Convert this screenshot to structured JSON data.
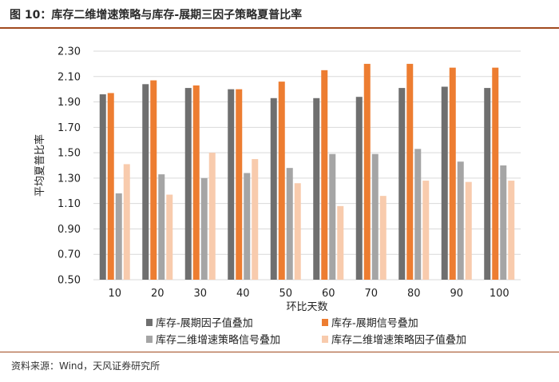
{
  "figure": {
    "title": "图 10：库存二维增速策略与库存-展期三因子策略夏普比率",
    "source": "资料来源：Wind，天风证券研究所"
  },
  "colors": {
    "header_rule": "#a14a1e",
    "grid": "#d9d9d9"
  },
  "chart_data": {
    "type": "bar",
    "xlabel": "环比天数",
    "ylabel": "平均夏普比率",
    "ylim": [
      0.5,
      2.3
    ],
    "yticks": [
      "0.50",
      "0.70",
      "0.90",
      "1.10",
      "1.30",
      "1.50",
      "1.70",
      "1.90",
      "2.10",
      "2.30"
    ],
    "grid": "horizontal",
    "legend_position": "bottom",
    "categories": [
      "10",
      "20",
      "30",
      "40",
      "50",
      "60",
      "70",
      "80",
      "90",
      "100"
    ],
    "series": [
      {
        "name": "库存-展期因子值叠加",
        "color": "#6f6f6f",
        "values": [
          1.96,
          2.04,
          2.01,
          2.0,
          1.93,
          1.93,
          1.94,
          2.01,
          2.02,
          2.01
        ]
      },
      {
        "name": "库存-展期信号叠加",
        "color": "#ed7d31",
        "values": [
          1.97,
          2.07,
          2.03,
          2.0,
          2.06,
          2.15,
          2.2,
          2.2,
          2.17,
          2.17
        ]
      },
      {
        "name": "库存二维增速策略信号叠加",
        "color": "#a5a5a5",
        "values": [
          1.18,
          1.33,
          1.3,
          1.34,
          1.38,
          1.49,
          1.49,
          1.53,
          1.43,
          1.4
        ]
      },
      {
        "name": "库存二维增速策略因子值叠加",
        "color": "#f8cbad",
        "values": [
          1.41,
          1.17,
          1.5,
          1.45,
          1.26,
          1.08,
          1.16,
          1.28,
          1.27,
          1.28
        ]
      }
    ]
  }
}
